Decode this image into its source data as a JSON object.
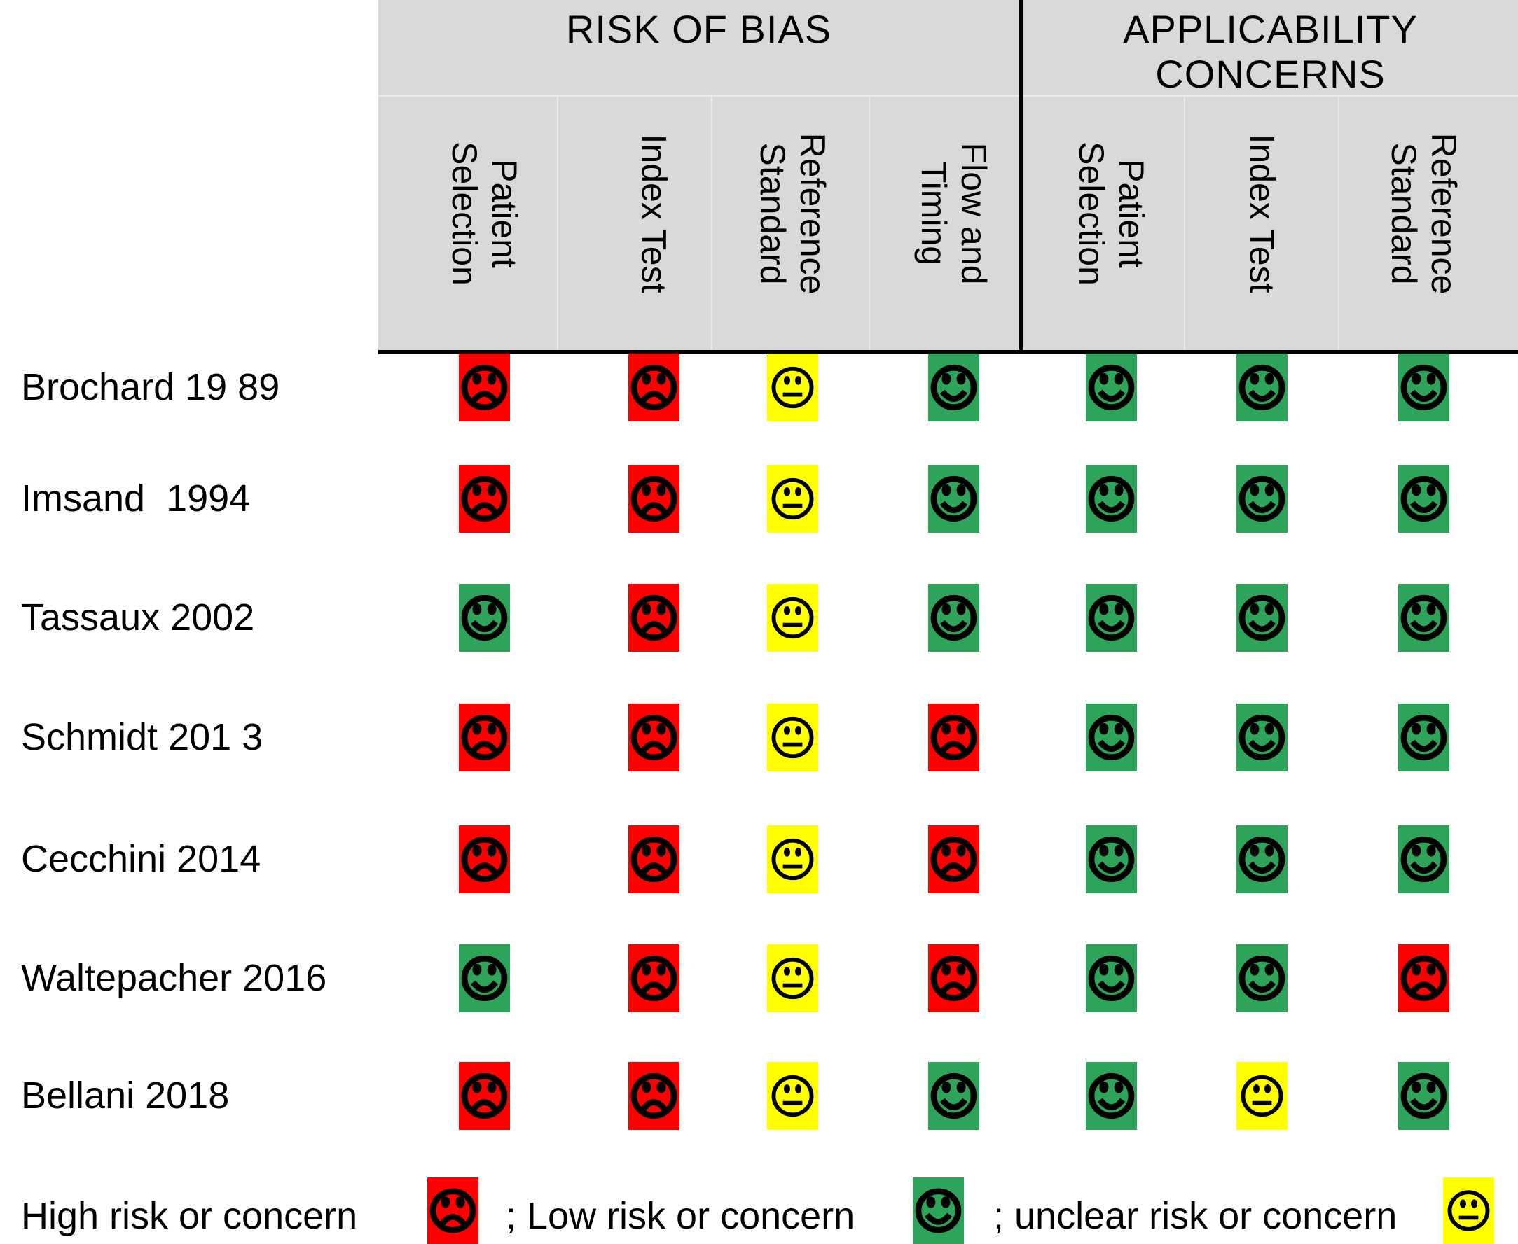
{
  "figure": {
    "header": {
      "risk_of_bias": "RISK OF BIAS",
      "applicability_line1": "APPLICABILITY",
      "applicability_line2": "CONCERNS",
      "header_bg_color": "#D9D9D9"
    },
    "columns": [
      {
        "section": "RISK OF BIAS",
        "lines": [
          "Patient",
          "Selection"
        ]
      },
      {
        "section": "RISK OF BIAS",
        "lines": [
          "Index Test"
        ]
      },
      {
        "section": "RISK OF BIAS",
        "lines": [
          "Reference",
          "Standard"
        ]
      },
      {
        "section": "RISK OF BIAS",
        "lines": [
          "Flow and",
          "Timing"
        ]
      },
      {
        "section": "APPLICABILITY CONCERNS",
        "lines": [
          "Patient",
          "Selection"
        ]
      },
      {
        "section": "APPLICABILITY CONCERNS",
        "lines": [
          "Index Test"
        ]
      },
      {
        "section": "APPLICABILITY CONCERNS",
        "lines": [
          "Reference",
          "Standard"
        ]
      }
    ],
    "rows": [
      {
        "study": "Brochard 19 89",
        "ratings": [
          "high",
          "high",
          "unclear",
          "low",
          "low",
          "low",
          "low"
        ]
      },
      {
        "study": "Imsand  1994",
        "ratings": [
          "high",
          "high",
          "unclear",
          "low",
          "low",
          "low",
          "low"
        ]
      },
      {
        "study": "Tassaux 2002",
        "ratings": [
          "low",
          "high",
          "unclear",
          "low",
          "low",
          "low",
          "low"
        ]
      },
      {
        "study": "Schmidt 201 3",
        "ratings": [
          "high",
          "high",
          "unclear",
          "high",
          "low",
          "low",
          "low"
        ]
      },
      {
        "study": "Cecchini 2014",
        "ratings": [
          "high",
          "high",
          "unclear",
          "high",
          "low",
          "low",
          "low"
        ]
      },
      {
        "study": "Waltepacher 2016",
        "ratings": [
          "low",
          "high",
          "unclear",
          "high",
          "low",
          "low",
          "high"
        ]
      },
      {
        "study": "Bellani 2018",
        "ratings": [
          "high",
          "high",
          "unclear",
          "low",
          "low",
          "unclear",
          "low"
        ]
      }
    ],
    "legend": [
      {
        "label": "High risk or concern",
        "rating": "high"
      },
      {
        "label": "; Low risk or concern",
        "rating": "low"
      },
      {
        "label": "; unclear risk or concern",
        "rating": "unclear"
      }
    ],
    "ratings": {
      "high": {
        "color": "#FF0000",
        "face": "frown",
        "icon_name": "frown-face-icon"
      },
      "low": {
        "color": "#2DA45A",
        "face": "smile",
        "icon_name": "smile-face-icon"
      },
      "unclear": {
        "color": "#FFFF00",
        "face": "neutral",
        "icon_name": "neutral-face-icon"
      }
    }
  }
}
